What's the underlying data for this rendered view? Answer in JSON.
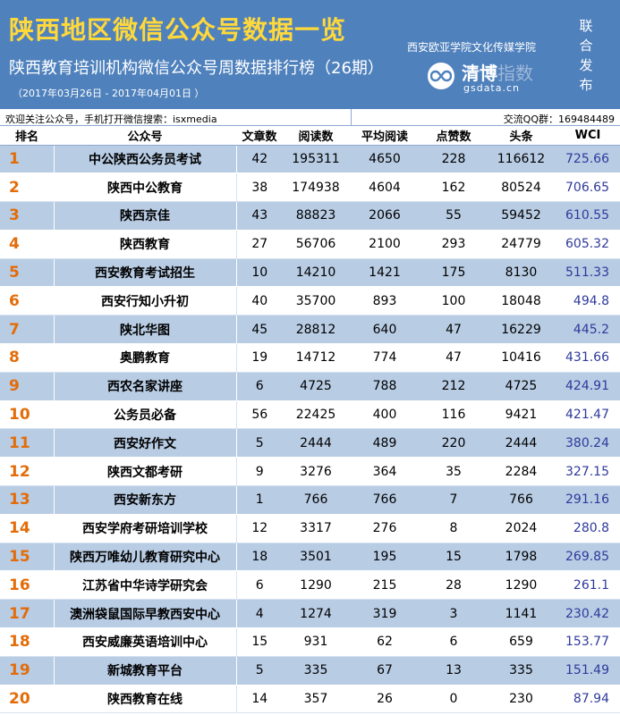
{
  "header": {
    "title": "陕西地区微信公众号数据一览",
    "subtitle": "陕西教育培训机构微信公众号周数据排行榜（26期）",
    "date_range": "（2017年03月26日 - 2017年04月01日 ）",
    "partner_name": "西安欧亚学院文化传媒学院",
    "logo_name": "清博",
    "logo_name_faint": "指数",
    "logo_domain": "gsdata.cn",
    "vertical_text": [
      "联",
      "合",
      "发",
      "布"
    ]
  },
  "info": {
    "left": "欢迎关注公众号，手机打开微信搜索：isxmedia",
    "right": "交流QQ群：169484489"
  },
  "colors": {
    "header_bg": "#4f81bd",
    "title": "#ffd83b",
    "rank_number": "#e36c09",
    "wci": "#2e3a9b",
    "row_stripe": "#b8cce4"
  },
  "table": {
    "columns": [
      "排名",
      "公众号",
      "文章数",
      "阅读数",
      "平均阅读",
      "点赞数",
      "头条",
      "WCI"
    ],
    "rows": [
      [
        "1",
        "中公陕西公务员考试",
        "42",
        "195311",
        "4650",
        "228",
        "116612",
        "725.66"
      ],
      [
        "2",
        "陕西中公教育",
        "38",
        "174938",
        "4604",
        "162",
        "80524",
        "706.65"
      ],
      [
        "3",
        "陕西京佳",
        "43",
        "88823",
        "2066",
        "55",
        "59452",
        "610.55"
      ],
      [
        "4",
        "陕西教育",
        "27",
        "56706",
        "2100",
        "293",
        "24779",
        "605.32"
      ],
      [
        "5",
        "西安教育考试招生",
        "10",
        "14210",
        "1421",
        "175",
        "8130",
        "511.33"
      ],
      [
        "6",
        "西安行知小升初",
        "40",
        "35700",
        "893",
        "100",
        "18048",
        "494.8"
      ],
      [
        "7",
        "陕北华图",
        "45",
        "28812",
        "640",
        "47",
        "16229",
        "445.2"
      ],
      [
        "8",
        "奥鹏教育",
        "19",
        "14712",
        "774",
        "47",
        "10416",
        "431.66"
      ],
      [
        "9",
        "西农名家讲座",
        "6",
        "4725",
        "788",
        "212",
        "4725",
        "424.91"
      ],
      [
        "10",
        "公务员必备",
        "56",
        "22425",
        "400",
        "116",
        "9421",
        "421.47"
      ],
      [
        "11",
        "西安好作文",
        "5",
        "2444",
        "489",
        "220",
        "2444",
        "380.24"
      ],
      [
        "12",
        "陕西文都考研",
        "9",
        "3276",
        "364",
        "35",
        "2284",
        "327.15"
      ],
      [
        "13",
        "西安新东方",
        "1",
        "766",
        "766",
        "7",
        "766",
        "291.16"
      ],
      [
        "14",
        "西安学府考研培训学校",
        "12",
        "3317",
        "276",
        "8",
        "2024",
        "280.8"
      ],
      [
        "15",
        "陕西万唯幼儿教育研究中心",
        "18",
        "3501",
        "195",
        "15",
        "1798",
        "269.85"
      ],
      [
        "16",
        "江苏省中华诗学研究会",
        "6",
        "1290",
        "215",
        "28",
        "1290",
        "261.1"
      ],
      [
        "17",
        "澳洲袋鼠国际早教西安中心",
        "4",
        "1274",
        "319",
        "3",
        "1141",
        "230.42"
      ],
      [
        "18",
        "西安威廉英语培训中心",
        "15",
        "931",
        "62",
        "6",
        "659",
        "153.77"
      ],
      [
        "19",
        "新城教育平台",
        "5",
        "335",
        "67",
        "13",
        "335",
        "151.49"
      ],
      [
        "20",
        "陕西教育在线",
        "14",
        "357",
        "26",
        "0",
        "230",
        "87.94"
      ]
    ]
  }
}
